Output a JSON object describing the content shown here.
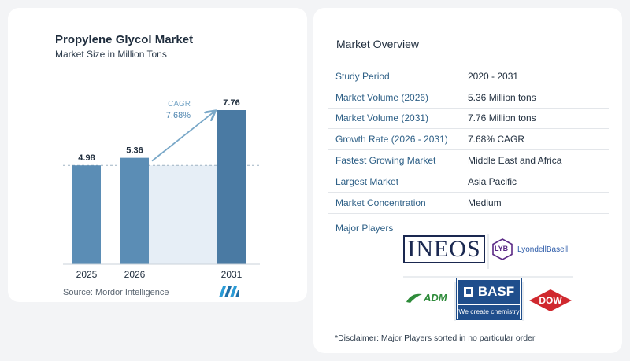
{
  "chart": {
    "title": "Propylene Glycol Market",
    "subtitle": "Market Size in Million Tons",
    "source": "Source:  Mordor Intelligence",
    "cagr_label": "CAGR",
    "cagr_value": "7.68%"
  },
  "chart_data": {
    "type": "bar",
    "categories": [
      "2025",
      "2026",
      "2031"
    ],
    "values": [
      4.98,
      5.36,
      7.76
    ],
    "data_labels": [
      "4.98",
      "5.36",
      "7.76"
    ],
    "title": "Propylene Glycol Market",
    "subtitle": "Market Size in Million Tons",
    "xlabel": "",
    "ylabel": "",
    "ylim": [
      0,
      7.76
    ],
    "grid": false,
    "reference_line": 4.98,
    "annotation": {
      "text": "CAGR 7.68%",
      "from": "2026",
      "to": "2031"
    }
  },
  "overview": {
    "title": "Market Overview",
    "rows": [
      {
        "key": "Study Period",
        "value": "2020 - 2031"
      },
      {
        "key": "Market Volume (2026)",
        "value": "5.36 Million tons"
      },
      {
        "key": "Market Volume (2031)",
        "value": "7.76 Million tons"
      },
      {
        "key": "Growth Rate (2026 - 2031)",
        "value": "7.68% CAGR"
      },
      {
        "key": "Fastest Growing Market",
        "value": "Middle East and Africa"
      },
      {
        "key": "Largest Market",
        "value": "Asia Pacific"
      },
      {
        "key": "Market Concentration",
        "value": "Medium"
      }
    ],
    "players_label": "Major Players",
    "disclaimer": "*Disclaimer: Major Players sorted in no particular order"
  },
  "logos": {
    "ineos": "INEOS",
    "lyb": "LYB",
    "lyondellbasell": "LyondellBasell",
    "basf": "BASF",
    "basf_tagline": "We create chemistry",
    "adm": "ADM",
    "dow": "DOW"
  },
  "colors": {
    "bar": "#5b8db5",
    "bar_dark": "#4a7aa3",
    "shade": "#e6eef6",
    "arrow": "#7aa8c8",
    "label_accent": "#2d5f86",
    "ineos_navy": "#1a2850",
    "lyb_purple": "#5b2a86",
    "lyondell_blue": "#2b5aa8",
    "basf_blue": "#1f4e8c",
    "adm_green": "#2e8b3a",
    "dow_red": "#d0282e"
  }
}
